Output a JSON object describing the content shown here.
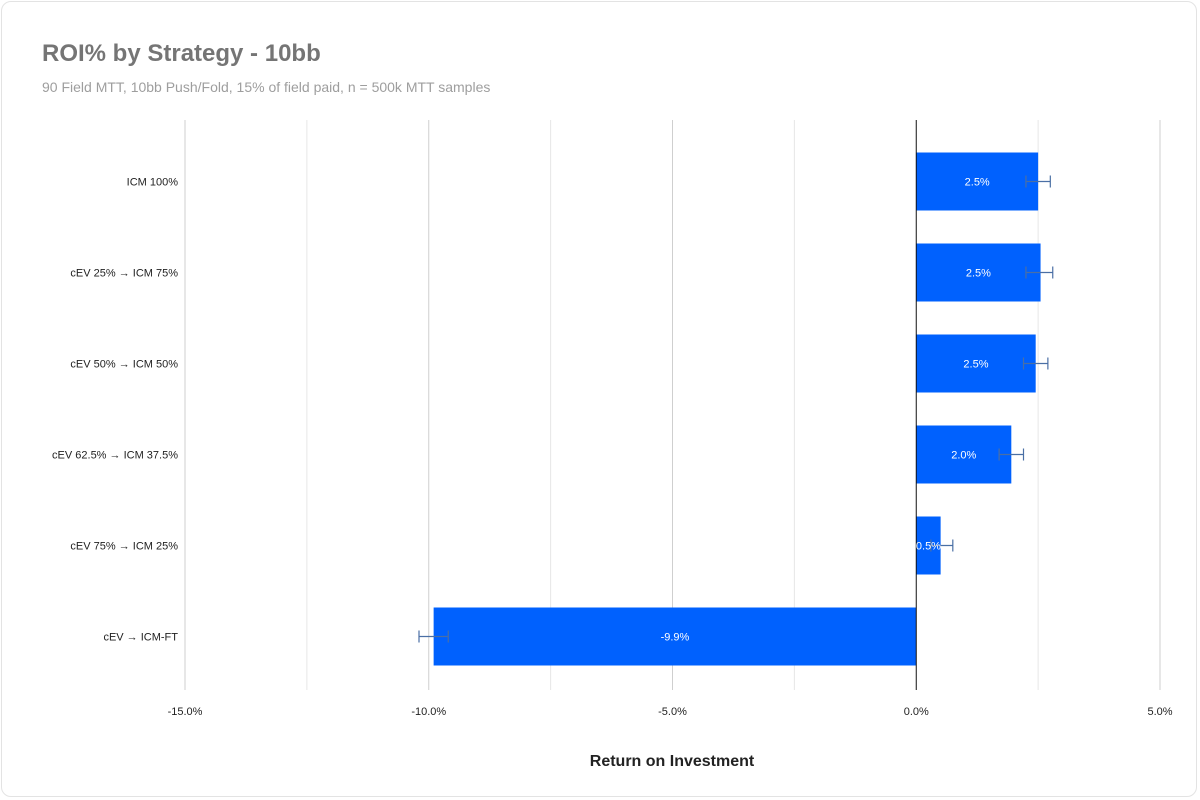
{
  "chart_data": {
    "type": "bar",
    "orientation": "horizontal",
    "title": "ROI% by Strategy - 10bb",
    "subtitle": "90 Field MTT, 10bb Push/Fold, 15% of field paid, n = 500k MTT samples",
    "xlabel": "Return on Investment",
    "ylabel": "",
    "categories": [
      "ICM 100%",
      "cEV 25% → ICM 75%",
      "cEV 50% → ICM 50%",
      "cEV 62.5% → ICM 37.5%",
      "cEV 75% → ICM 25%",
      "cEV → ICM-FT"
    ],
    "values": [
      2.5,
      2.55,
      2.45,
      1.95,
      0.5,
      -9.9
    ],
    "data_labels": [
      "2.5%",
      "2.5%",
      "2.5%",
      "2.0%",
      "0.5%",
      "-9.9%"
    ],
    "error_low": [
      2.25,
      2.25,
      2.2,
      1.7,
      0.3,
      -10.2
    ],
    "error_high": [
      2.75,
      2.8,
      2.7,
      2.2,
      0.75,
      -9.6
    ],
    "xlim": [
      -15,
      5
    ],
    "xticks": [
      -15,
      -10,
      -5,
      0,
      5
    ],
    "xtick_labels": [
      "-15.0%",
      "-10.0%",
      "-5.0%",
      "0.0%",
      "5.0%"
    ],
    "minor_gridlines": [
      -12.5,
      -7.5,
      -2.5,
      2.5
    ],
    "grid": true,
    "legend": "none",
    "bar_color": "#0061fe",
    "error_bar_color": "#4a6fa5"
  }
}
